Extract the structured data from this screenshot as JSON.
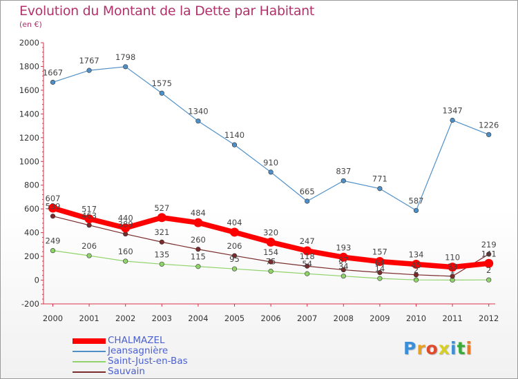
{
  "title": "Evolution du Montant de la Dette par Habitant",
  "unit_label": "(en €)",
  "logo_text": "Proxiti",
  "colors": {
    "title": "#b0326a",
    "axis": "#d9304a",
    "legend_text": "#4a5fd0",
    "CHALMAZEL": "#ff0000",
    "Jeansagnière": "#4f8fc8",
    "Saint-Just-en-Bas": "#8fd36a",
    "Sauvain": "#7a2a2a"
  },
  "chart_data": {
    "type": "line",
    "title": "Evolution du Montant de la Dette par Habitant",
    "ylabel": "(en €)",
    "xlabel": "",
    "categories": [
      "2000",
      "2001",
      "2002",
      "2003",
      "2004",
      "2005",
      "2006",
      "2007",
      "2008",
      "2009",
      "2010",
      "2011",
      "2012"
    ],
    "ylim": [
      -200,
      2000
    ],
    "yticks": [
      -200,
      0,
      200,
      400,
      600,
      800,
      1000,
      1200,
      1400,
      1600,
      1800,
      2000
    ],
    "grid": false,
    "legend_position": "bottom-left",
    "series": [
      {
        "name": "CHALMAZEL",
        "values": [
          607,
          517,
          440,
          527,
          484,
          404,
          320,
          247,
          193,
          157,
          134,
          110,
          141
        ]
      },
      {
        "name": "Jeansagnière",
        "values": [
          1667,
          1767,
          1798,
          1575,
          1340,
          1140,
          910,
          665,
          837,
          771,
          587,
          1347,
          1226
        ]
      },
      {
        "name": "Saint-Just-en-Bas",
        "values": [
          249,
          206,
          160,
          135,
          115,
          95,
          75,
          54,
          34,
          14,
          2,
          1,
          2
        ]
      },
      {
        "name": "Sauvain",
        "values": [
          539,
          463,
          389,
          321,
          260,
          206,
          154,
          118,
          87,
          64,
          45,
          33,
          219
        ]
      }
    ]
  }
}
